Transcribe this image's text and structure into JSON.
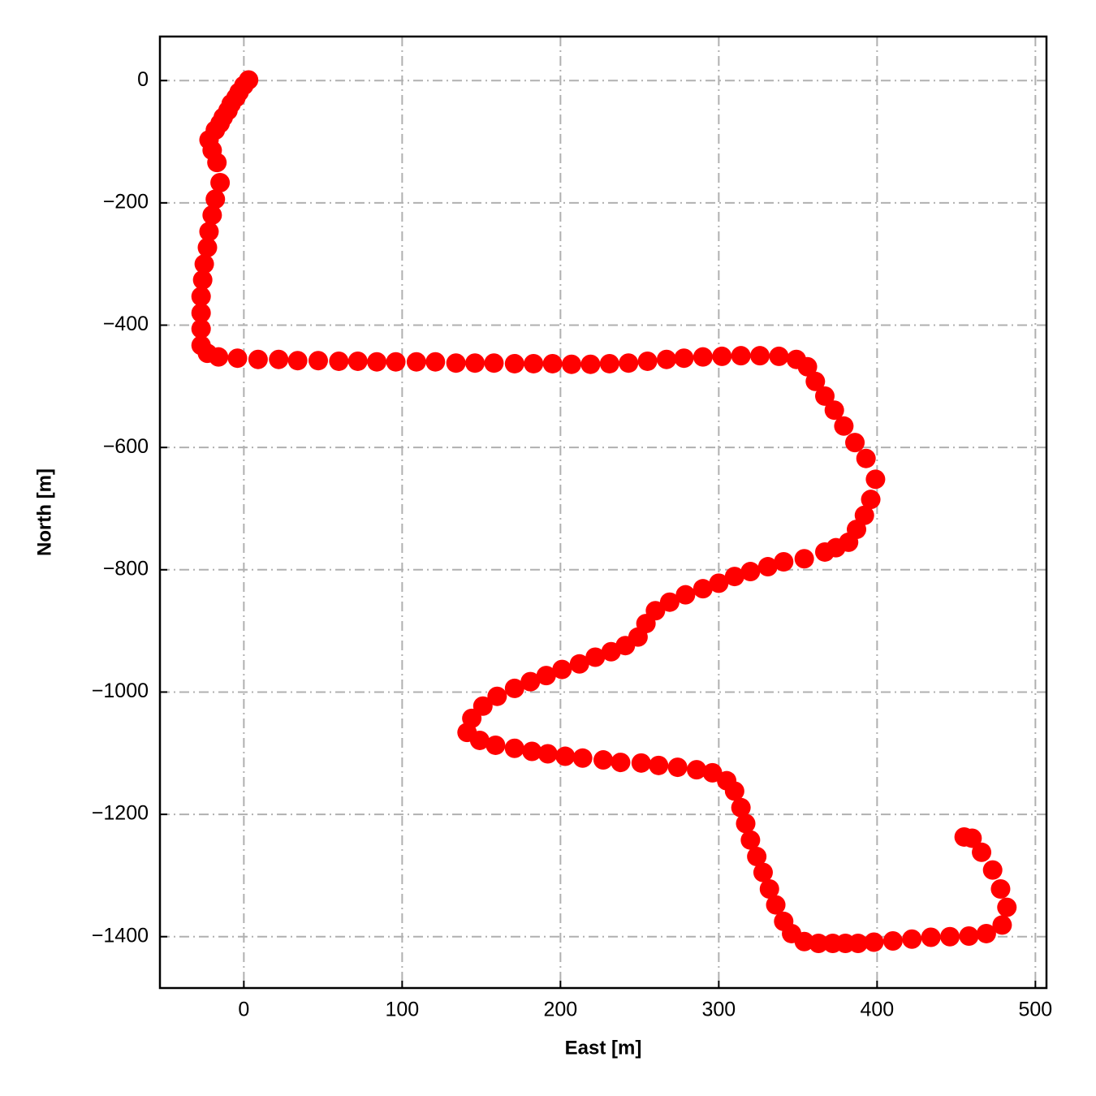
{
  "chart_data": {
    "type": "scatter",
    "xlabel": "East [m]",
    "ylabel": "North [m]",
    "xlim": [
      -53,
      507
    ],
    "ylim": [
      -1484,
      72
    ],
    "xticks": [
      0,
      100,
      200,
      300,
      400,
      500
    ],
    "yticks": [
      0,
      {
        "value": -200,
        "label": "−200"
      },
      {
        "value": -400,
        "label": "−400"
      },
      {
        "value": -600,
        "label": "−600"
      },
      {
        "value": -800,
        "label": "−800"
      },
      {
        "value": -1000,
        "label": "−1000"
      },
      {
        "value": -1200,
        "label": "−1200"
      },
      {
        "value": -1400,
        "label": "−1400"
      }
    ],
    "grid": true,
    "color": "#ff0000",
    "x": [
      3,
      0,
      -3,
      -5,
      -8,
      -10,
      -13,
      -15,
      -18,
      -22,
      -20,
      -17,
      -15,
      -18,
      -20,
      -22,
      -23,
      -25,
      -26,
      -27,
      -27,
      -27,
      -27,
      -23,
      -16,
      -4,
      9,
      22,
      34,
      47,
      60,
      72,
      84,
      96,
      109,
      121,
      134,
      146,
      158,
      171,
      183,
      195,
      207,
      219,
      231,
      243,
      255,
      267,
      278,
      290,
      302,
      314,
      326,
      338,
      349,
      356,
      361,
      367,
      373,
      379,
      386,
      393,
      399,
      396,
      392,
      387,
      382,
      374,
      367,
      354,
      341,
      331,
      320,
      310,
      300,
      290,
      279,
      269,
      260,
      254,
      249,
      241,
      232,
      222,
      212,
      201,
      191,
      181,
      171,
      160,
      151,
      144,
      141,
      149,
      159,
      171,
      182,
      192,
      203,
      214,
      227,
      238,
      251,
      262,
      274,
      286,
      296,
      305,
      310,
      314,
      317,
      320,
      324,
      328,
      332,
      336,
      341,
      346,
      354,
      363,
      372,
      380,
      388,
      398,
      410,
      422,
      434,
      446,
      458,
      469,
      479,
      482,
      478,
      473,
      466,
      460,
      455
    ],
    "y": [
      1,
      -8,
      -19,
      -28,
      -38,
      -49,
      -60,
      -70,
      -81,
      -97,
      -114,
      -134,
      -167,
      -194,
      -220,
      -247,
      -273,
      -300,
      -326,
      -353,
      -380,
      -406,
      -433,
      -446,
      -452,
      -454,
      -456,
      -456,
      -458,
      -458,
      -459,
      -459,
      -460,
      -460,
      -460,
      -460,
      -462,
      -462,
      -462,
      -463,
      -463,
      -463,
      -464,
      -464,
      -463,
      -462,
      -459,
      -456,
      -454,
      -452,
      -451,
      -450,
      -450,
      -451,
      -456,
      -468,
      -492,
      -516,
      -539,
      -565,
      -592,
      -618,
      -652,
      -685,
      -711,
      -734,
      -755,
      -764,
      -771,
      -782,
      -787,
      -795,
      -803,
      -811,
      -822,
      -831,
      -841,
      -853,
      -867,
      -888,
      -910,
      -924,
      -934,
      -943,
      -954,
      -963,
      -973,
      -983,
      -994,
      -1007,
      -1023,
      -1043,
      -1066,
      -1079,
      -1087,
      -1092,
      -1097,
      -1101,
      -1105,
      -1108,
      -1111,
      -1115,
      -1116,
      -1120,
      -1123,
      -1127,
      -1132,
      -1145,
      -1162,
      -1189,
      -1215,
      -1242,
      -1269,
      -1295,
      -1322,
      -1348,
      -1375,
      -1395,
      -1408,
      -1411,
      -1411,
      -1411,
      -1411,
      -1409,
      -1407,
      -1404,
      -1401,
      -1400,
      -1399,
      -1395,
      -1381,
      -1352,
      -1322,
      -1291,
      -1262,
      -1239,
      -1237
    ]
  }
}
